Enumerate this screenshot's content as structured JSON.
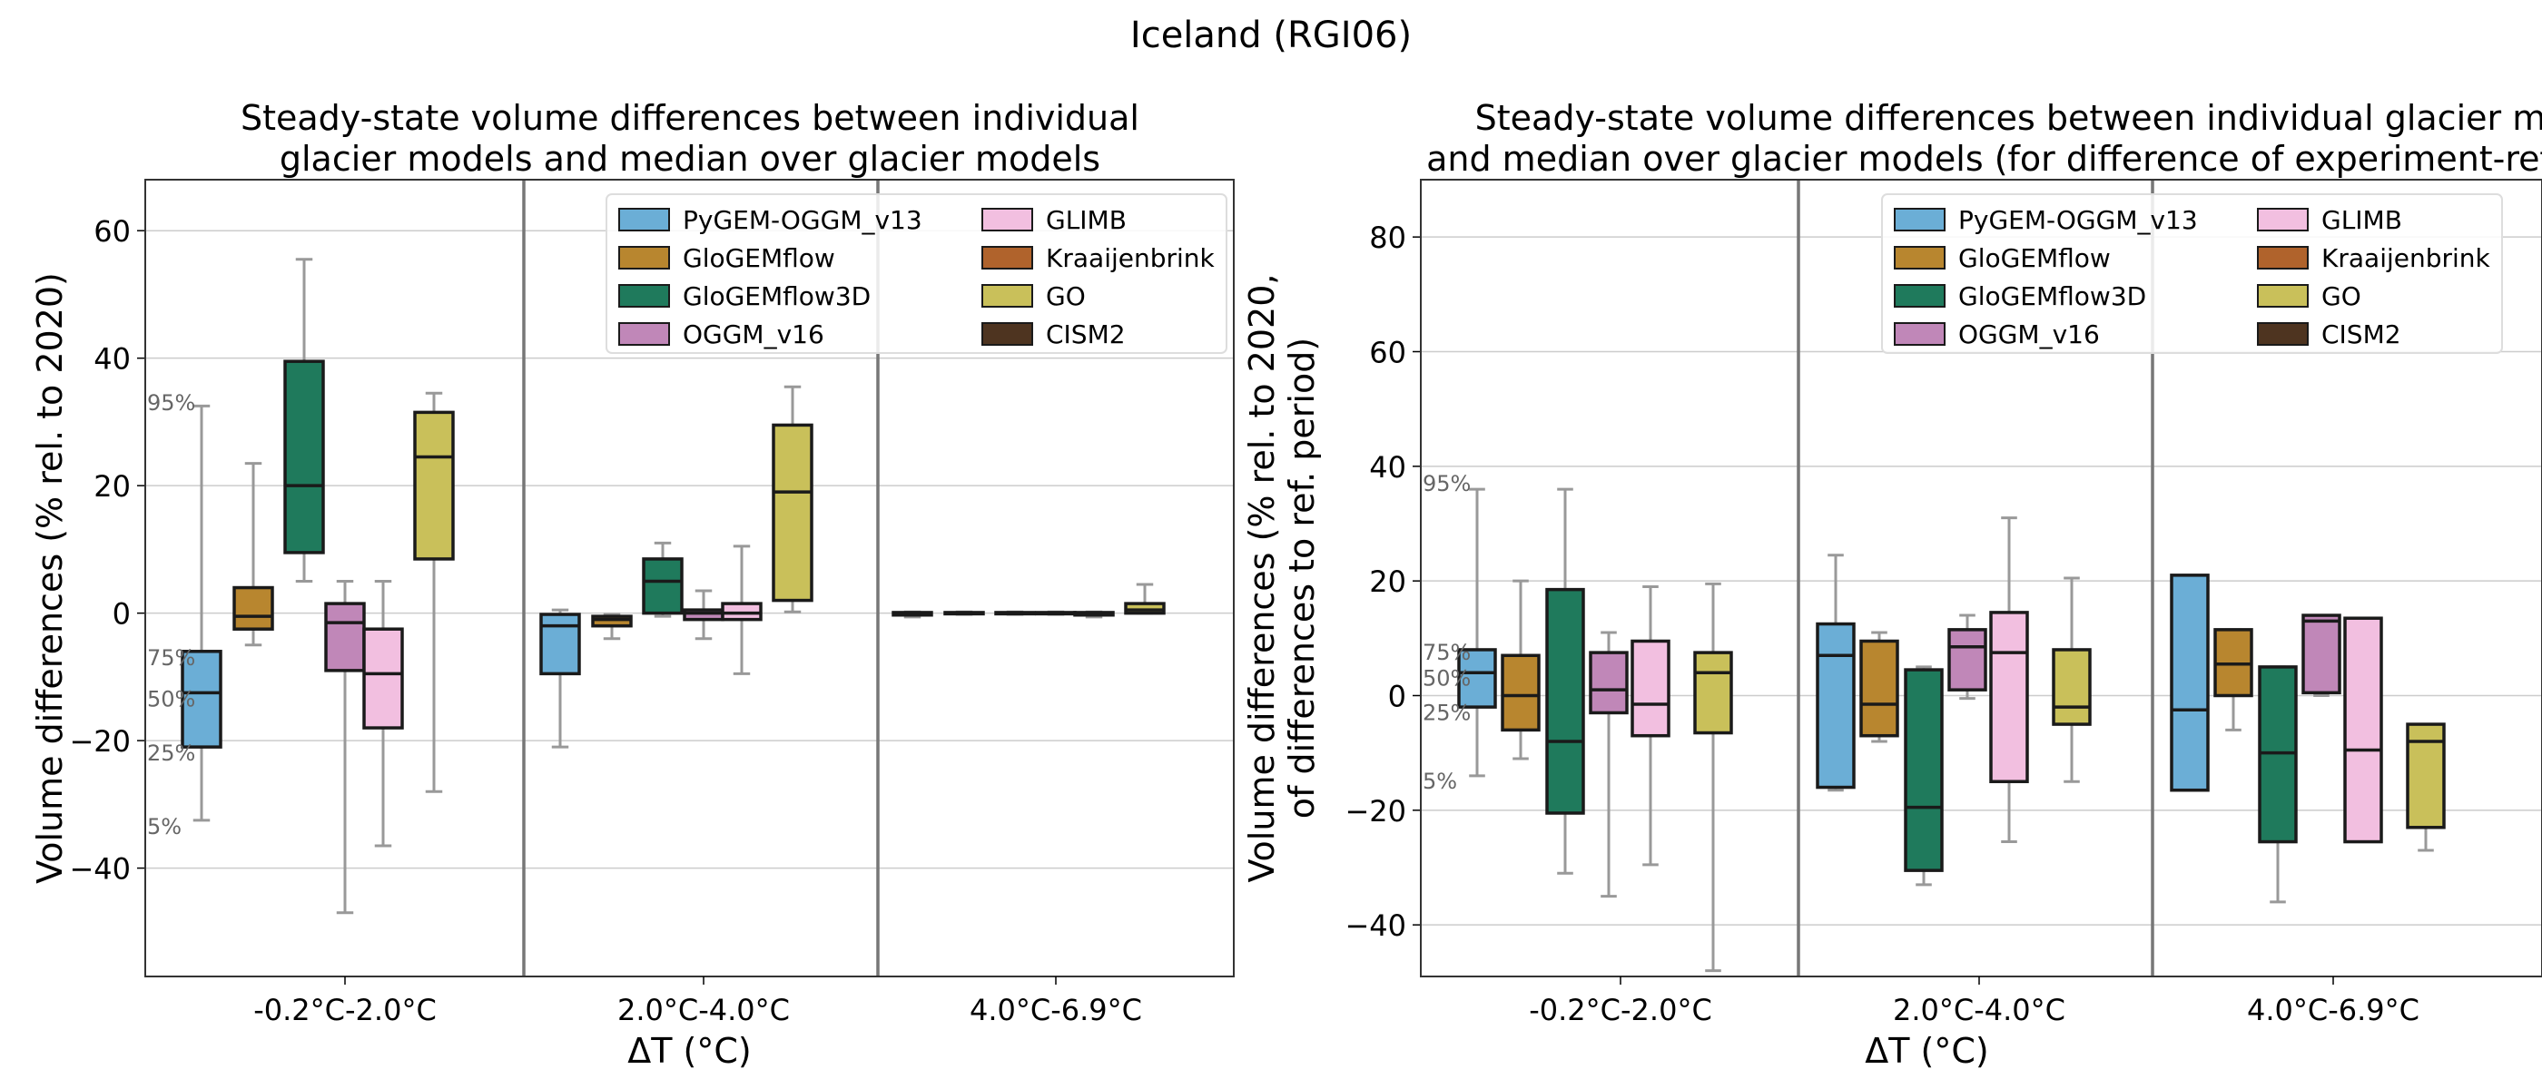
{
  "figure": {
    "suptitle": "Iceland (RGI06)"
  },
  "legend": [
    {
      "name": "PyGEM-OGGM_v13",
      "color": "#6baed6"
    },
    {
      "name": "GloGEMflow",
      "color": "#b8862f"
    },
    {
      "name": "GloGEMflow3D",
      "color": "#1f7a5c"
    },
    {
      "name": "OGGM_v16",
      "color": "#c087b8"
    },
    {
      "name": "GLIMB",
      "color": "#f2bfe0"
    },
    {
      "name": "Kraaijenbrink",
      "color": "#b0632c"
    },
    {
      "name": "GO",
      "color": "#c9c05a"
    },
    {
      "name": "CISM2",
      "color": "#4e3420"
    }
  ],
  "chart_data": [
    {
      "type": "box",
      "title": "Steady-state volume differences between individual\nglacier models and median over glacier models",
      "xlabel": "ΔT (°C)",
      "ylabel": "Volume differences (% rel. to 2020)",
      "ylim": [
        -57,
        68
      ],
      "yticks": [
        -40,
        -20,
        0,
        20,
        40,
        60
      ],
      "grid": true,
      "legend_position": "top-right",
      "categories": [
        "-0.2°C-2.0°C",
        "2.0°C-4.0°C",
        "4.0°C-6.9°C"
      ],
      "percentile_labels": [
        {
          "text": "95%",
          "y": 33
        },
        {
          "text": "75%",
          "y": -7
        },
        {
          "text": "50%",
          "y": -13.5
        },
        {
          "text": "25%",
          "y": -22
        },
        {
          "text": "5%",
          "y": -33.5
        }
      ],
      "boxes": [
        {
          "model": "PyGEM-OGGM_v13",
          "category": 0,
          "p5": -32.5,
          "q1": -21,
          "med": -12.5,
          "q3": -6,
          "p95": 32.5
        },
        {
          "model": "GloGEMflow",
          "category": 0,
          "p5": -5,
          "q1": -2.5,
          "med": -0.5,
          "q3": 4,
          "p95": 23.5
        },
        {
          "model": "GloGEMflow3D",
          "category": 0,
          "p5": 5,
          "q1": 9.5,
          "med": 20,
          "q3": 39.5,
          "p95": 55.5
        },
        {
          "model": "OGGM_v16",
          "category": 0,
          "p5": -47,
          "q1": -9,
          "med": -1.5,
          "q3": 1.5,
          "p95": 5
        },
        {
          "model": "GLIMB",
          "category": 0,
          "p5": -36.5,
          "q1": -18,
          "med": -9.5,
          "q3": -2.5,
          "p95": 5
        },
        {
          "model": "GO",
          "category": 0,
          "p5": -28,
          "q1": 8.5,
          "med": 24.5,
          "q3": 31.5,
          "p95": 34.5
        },
        {
          "model": "PyGEM-OGGM_v13",
          "category": 1,
          "p5": -21,
          "q1": -9.5,
          "med": -2,
          "q3": -0.2,
          "p95": 0.5
        },
        {
          "model": "GloGEMflow",
          "category": 1,
          "p5": -4,
          "q1": -2,
          "med": -1,
          "q3": -0.5,
          "p95": -0.2
        },
        {
          "model": "GloGEMflow3D",
          "category": 1,
          "p5": -0.5,
          "q1": 0,
          "med": 5,
          "q3": 8.5,
          "p95": 11
        },
        {
          "model": "OGGM_v16",
          "category": 1,
          "p5": -4,
          "q1": -1,
          "med": 0,
          "q3": 0.5,
          "p95": 3.5
        },
        {
          "model": "GLIMB",
          "category": 1,
          "p5": -9.5,
          "q1": -1,
          "med": 0,
          "q3": 1.5,
          "p95": 10.5
        },
        {
          "model": "GO",
          "category": 1,
          "p5": 0.2,
          "q1": 2,
          "med": 19,
          "q3": 29.5,
          "p95": 35.5
        },
        {
          "model": "PyGEM-OGGM_v13",
          "category": 2,
          "p5": -0.6,
          "q1": -0.3,
          "med": 0,
          "q3": 0.1,
          "p95": 0.2
        },
        {
          "model": "GloGEMflow",
          "category": 2,
          "p5": -0.2,
          "q1": -0.1,
          "med": 0,
          "q3": 0.1,
          "p95": 0.2
        },
        {
          "model": "GloGEMflow3D",
          "category": 2,
          "p5": -0.2,
          "q1": -0.1,
          "med": 0,
          "q3": 0.1,
          "p95": 0.2
        },
        {
          "model": "OGGM_v16",
          "category": 2,
          "p5": -0.2,
          "q1": -0.1,
          "med": 0,
          "q3": 0.1,
          "p95": 0.2
        },
        {
          "model": "GLIMB",
          "category": 2,
          "p5": -0.6,
          "q1": -0.3,
          "med": 0,
          "q3": 0.1,
          "p95": 0.2
        },
        {
          "model": "GO",
          "category": 2,
          "p5": 0,
          "q1": 0,
          "med": 0.5,
          "q3": 1.5,
          "p95": 4.5
        }
      ]
    },
    {
      "type": "box",
      "title": "Steady-state volume differences between individual glacier models\nand median over glacier models (for difference of experiment-ref period)",
      "xlabel": "ΔT (°C)",
      "ylabel": "Volume differences (% rel. to 2020,\nof differences to ref. period)",
      "ylim": [
        -49,
        90
      ],
      "yticks": [
        -40,
        -20,
        0,
        20,
        40,
        60,
        80
      ],
      "grid": true,
      "legend_position": "top-right",
      "categories": [
        "-0.2°C-2.0°C",
        "2.0°C-4.0°C",
        "4.0°C-6.9°C"
      ],
      "percentile_labels": [
        {
          "text": "95%",
          "y": 37
        },
        {
          "text": "75%",
          "y": 7.5
        },
        {
          "text": "50%",
          "y": 3
        },
        {
          "text": "25%",
          "y": -3
        },
        {
          "text": "5%",
          "y": -15
        }
      ],
      "boxes": [
        {
          "model": "PyGEM-OGGM_v13",
          "category": 0,
          "p5": -14,
          "q1": -2,
          "med": 4,
          "q3": 8,
          "p95": 36
        },
        {
          "model": "GloGEMflow",
          "category": 0,
          "p5": -11,
          "q1": -6,
          "med": 0,
          "q3": 7,
          "p95": 20
        },
        {
          "model": "GloGEMflow3D",
          "category": 0,
          "p5": -31,
          "q1": -20.5,
          "med": -8,
          "q3": 18.5,
          "p95": 36
        },
        {
          "model": "OGGM_v16",
          "category": 0,
          "p5": -35,
          "q1": -3,
          "med": 1,
          "q3": 7.5,
          "p95": 11
        },
        {
          "model": "GLIMB",
          "category": 0,
          "p5": -29.5,
          "q1": -7,
          "med": -1.5,
          "q3": 9.5,
          "p95": 19
        },
        {
          "model": "GO",
          "category": 0,
          "p5": -48,
          "q1": -6.5,
          "med": 4,
          "q3": 7.5,
          "p95": 19.5
        },
        {
          "model": "PyGEM-OGGM_v13",
          "category": 1,
          "p5": -16.5,
          "q1": -16,
          "med": 7,
          "q3": 12.5,
          "p95": 24.5
        },
        {
          "model": "GloGEMflow",
          "category": 1,
          "p5": -8,
          "q1": -7,
          "med": -1.5,
          "q3": 9.5,
          "p95": 11
        },
        {
          "model": "GloGEMflow3D",
          "category": 1,
          "p5": -33,
          "q1": -30.5,
          "med": -19.5,
          "q3": 4.5,
          "p95": 5
        },
        {
          "model": "OGGM_v16",
          "category": 1,
          "p5": -0.5,
          "q1": 1,
          "med": 8.5,
          "q3": 11.5,
          "p95": 14
        },
        {
          "model": "GLIMB",
          "category": 1,
          "p5": -25.5,
          "q1": -15,
          "med": 7.5,
          "q3": 14.5,
          "p95": 31
        },
        {
          "model": "GO",
          "category": 1,
          "p5": -15,
          "q1": -5,
          "med": -2,
          "q3": 8,
          "p95": 20.5
        },
        {
          "model": "PyGEM-OGGM_v13",
          "category": 2,
          "p5": -16.5,
          "q1": -16.5,
          "med": -2.5,
          "q3": 21,
          "p95": 21
        },
        {
          "model": "GloGEMflow",
          "category": 2,
          "p5": -6,
          "q1": 0,
          "med": 5.5,
          "q3": 11.5,
          "p95": 11.5
        },
        {
          "model": "GloGEMflow3D",
          "category": 2,
          "p5": -36,
          "q1": -25.5,
          "med": -10,
          "q3": 5,
          "p95": 5
        },
        {
          "model": "OGGM_v16",
          "category": 2,
          "p5": 0,
          "q1": 0.5,
          "med": 13,
          "q3": 14,
          "p95": 14
        },
        {
          "model": "GLIMB",
          "category": 2,
          "p5": -25.5,
          "q1": -25.5,
          "med": -9.5,
          "q3": 13.5,
          "p95": 13.5
        },
        {
          "model": "GO",
          "category": 2,
          "p5": -27,
          "q1": -23,
          "med": -8,
          "q3": -5,
          "p95": -5
        }
      ]
    }
  ]
}
